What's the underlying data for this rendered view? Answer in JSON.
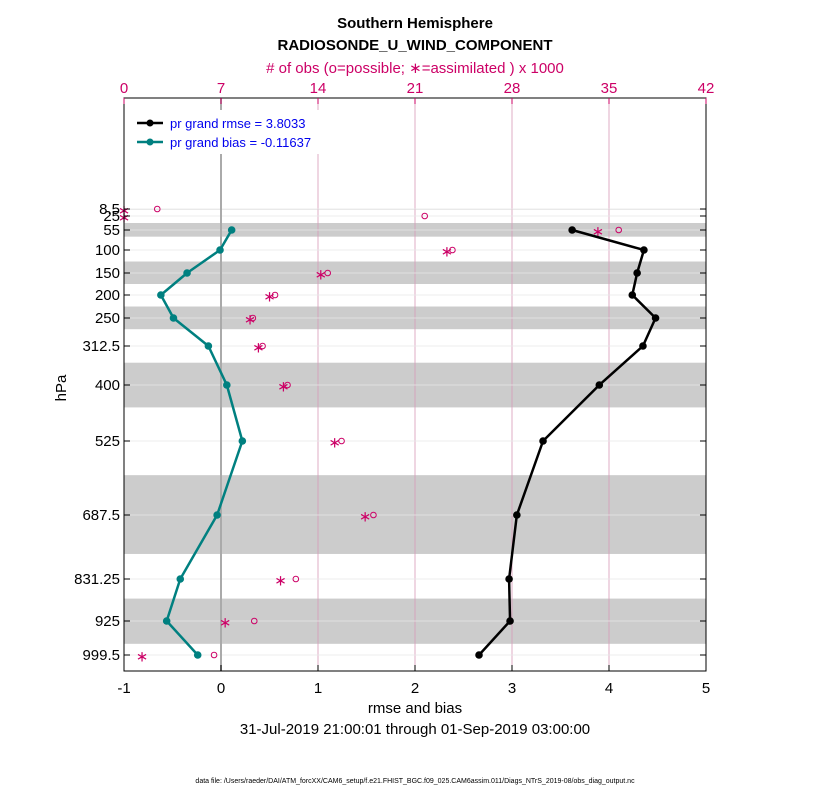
{
  "chart_data": {
    "type": "line",
    "title": "Southern Hemisphere",
    "subtitle": "RADIOSONDE_U_WIND_COMPONENT",
    "top_axis_label": "# of obs (o=possible; ∗=assimilated ) x 1000",
    "xlabel": "rmse and bias",
    "ylabel": "hPa",
    "date_range": "31-Jul-2019 21:00:01 through 01-Sep-2019 03:00:00",
    "footnote": "data file: /Users/raeder/DAI/ATM_forcXX/CAM6_setup/f.e21.FHIST_BGC.f09_025.CAM6assim.011/Diags_NTrS_2019-08/obs_diag_output.nc",
    "xlim": [
      -1,
      5
    ],
    "x_ticks": [
      "-1",
      "0",
      "1",
      "2",
      "3",
      "4",
      "5"
    ],
    "top_xlim": [
      0,
      42
    ],
    "top_ticks": [
      "0",
      "7",
      "14",
      "21",
      "28",
      "35",
      "42"
    ],
    "levels": [
      8.5,
      25,
      55,
      100,
      150,
      200,
      250,
      312.5,
      400,
      525,
      687.5,
      831.25,
      925,
      999.5
    ],
    "level_labels": [
      "8.5",
      "25",
      "55",
      "100",
      "150",
      "200",
      "250",
      "312.5",
      "400",
      "525",
      "687.5",
      "831.25",
      "925",
      "999.5"
    ],
    "series": [
      {
        "name": "pr grand rmse = 3.8033",
        "color": "#000000",
        "values": [
          null,
          null,
          3.62,
          4.36,
          4.29,
          4.24,
          4.48,
          4.35,
          3.9,
          3.32,
          3.05,
          2.97,
          2.98,
          2.66
        ]
      },
      {
        "name": "pr grand bias = -0.11637",
        "color": "#008080",
        "values": [
          null,
          null,
          0.11,
          -0.01,
          -0.35,
          -0.62,
          -0.49,
          -0.13,
          0.06,
          0.22,
          -0.04,
          -0.42,
          -0.56,
          -0.24
        ]
      }
    ],
    "obs_possible": [
      2.4,
      21.7,
      35.7,
      23.7,
      14.7,
      10.9,
      9.3,
      10.0,
      11.8,
      15.7,
      18.0,
      12.4,
      9.4,
      6.5
    ],
    "obs_assimilated": [
      0.0,
      0.0,
      34.2,
      23.3,
      14.2,
      10.5,
      9.1,
      9.7,
      11.5,
      15.2,
      17.4,
      11.3,
      7.3,
      1.3
    ],
    "obs_color": "#cc0066",
    "bias_series_color": "#008080"
  }
}
